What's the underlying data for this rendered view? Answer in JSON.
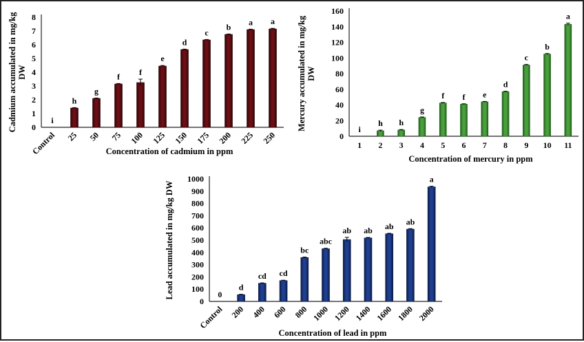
{
  "chart_data": [
    {
      "id": "cadmium",
      "type": "bar",
      "title": "",
      "xlabel": "Concentration of cadmium in ppm",
      "ylabel_lines": [
        "Cadmium  accumulated in mg/kg",
        "DW"
      ],
      "ylim": [
        0,
        8
      ],
      "yticks": [
        0,
        1,
        2,
        3,
        4,
        5,
        6,
        7,
        8
      ],
      "grid": false,
      "legend": "none",
      "x_label_rotation": "diagonal",
      "bar_color": "#6b0f14",
      "bar_edge_color": "#2a0305",
      "categories": [
        "Control",
        "25",
        "50",
        "75",
        "100",
        "125",
        "150",
        "175",
        "200",
        "225",
        "250"
      ],
      "values": [
        0,
        1.4,
        2.1,
        3.15,
        3.25,
        4.45,
        5.65,
        6.35,
        6.75,
        7.1,
        7.15
      ],
      "errors": [
        0,
        0.03,
        0.03,
        0.03,
        0.25,
        0.04,
        0.03,
        0.03,
        0.03,
        0.03,
        0.04
      ],
      "significance_letters": [
        "i",
        "h",
        "g",
        "f",
        "f",
        "e",
        "d",
        "c",
        "b",
        "a",
        "a"
      ]
    },
    {
      "id": "mercury",
      "type": "bar",
      "title": "",
      "xlabel": "Concentration  of mercury in ppm",
      "ylabel_lines": [
        "Mercury accumulated in mg/kg",
        "DW"
      ],
      "ylim": [
        0,
        160
      ],
      "yticks": [
        0,
        20,
        40,
        60,
        80,
        100,
        120,
        140,
        160
      ],
      "grid": false,
      "legend": "none",
      "x_label_rotation": "none",
      "bar_color": "#4aa03c",
      "bar_edge_color": "#1f5e1a",
      "categories": [
        "1",
        "2",
        "3",
        "4",
        "5",
        "6",
        "7",
        "8",
        "9",
        "10",
        "11"
      ],
      "values": [
        0,
        7,
        8,
        24,
        42.5,
        41,
        44,
        57,
        91,
        105,
        143
      ],
      "errors": [
        0,
        0.8,
        0.6,
        0.6,
        0.6,
        0.5,
        0.5,
        0.5,
        0.7,
        0.7,
        1.5
      ],
      "significance_letters": [
        "i",
        "h",
        "h",
        "g",
        "f",
        "f",
        "e",
        "d",
        "c",
        "b",
        "a"
      ]
    },
    {
      "id": "lead",
      "type": "bar",
      "title": "",
      "xlabel": "Concentration  of lead in ppm",
      "ylabel_lines": [
        "Lead accumulated in mg/kg DW"
      ],
      "ylim": [
        0,
        1000
      ],
      "yticks": [
        0,
        100,
        200,
        300,
        400,
        500,
        600,
        700,
        800,
        900,
        1000
      ],
      "grid": false,
      "legend": "none",
      "x_label_rotation": "diagonal",
      "bar_color": "#1f3f8f",
      "bar_edge_color": "#0b1a45",
      "categories": [
        "Control",
        "200",
        "400",
        "600",
        "800",
        "1000",
        "1200",
        "1400",
        "1600",
        "1800",
        "2000"
      ],
      "values": [
        0,
        55,
        148,
        170,
        358,
        430,
        505,
        518,
        552,
        590,
        935
      ],
      "errors": [
        0,
        3,
        3,
        3,
        4,
        4,
        18,
        4,
        4,
        4,
        5
      ],
      "significance_letters": [
        "0",
        "d",
        "cd",
        "cd",
        "bc",
        "abc",
        "ab",
        "ab",
        "ab",
        "ab",
        "a"
      ]
    }
  ]
}
